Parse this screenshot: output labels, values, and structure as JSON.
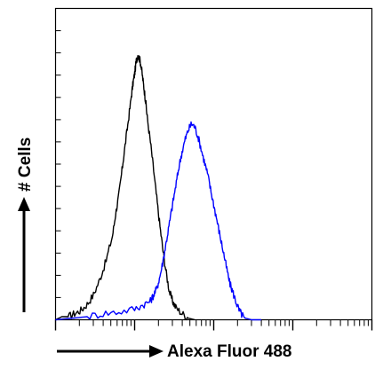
{
  "chart_data": {
    "type": "line",
    "title": "",
    "xlabel": "Alexa Fluor 488",
    "ylabel": "# Cells",
    "x_scale": "log",
    "grid": false,
    "legend": "none",
    "series": [
      {
        "color": "#000000",
        "points": [
          [
            0.0,
            0.0
          ],
          [
            0.02,
            0.01
          ],
          [
            0.04,
            0.01
          ],
          [
            0.06,
            0.02
          ],
          [
            0.08,
            0.03
          ],
          [
            0.1,
            0.05
          ],
          [
            0.12,
            0.08
          ],
          [
            0.14,
            0.13
          ],
          [
            0.16,
            0.19
          ],
          [
            0.18,
            0.27
          ],
          [
            0.19,
            0.34
          ],
          [
            0.2,
            0.4
          ],
          [
            0.21,
            0.48
          ],
          [
            0.22,
            0.56
          ],
          [
            0.23,
            0.64
          ],
          [
            0.24,
            0.72
          ],
          [
            0.245,
            0.76
          ],
          [
            0.25,
            0.79
          ],
          [
            0.255,
            0.83
          ],
          [
            0.26,
            0.85
          ],
          [
            0.265,
            0.84
          ],
          [
            0.27,
            0.82
          ],
          [
            0.275,
            0.78
          ],
          [
            0.28,
            0.74
          ],
          [
            0.285,
            0.7
          ],
          [
            0.29,
            0.65
          ],
          [
            0.3,
            0.57
          ],
          [
            0.31,
            0.48
          ],
          [
            0.32,
            0.39
          ],
          [
            0.33,
            0.3
          ],
          [
            0.34,
            0.22
          ],
          [
            0.35,
            0.15
          ],
          [
            0.36,
            0.09
          ],
          [
            0.37,
            0.06
          ],
          [
            0.38,
            0.04
          ],
          [
            0.4,
            0.02
          ],
          [
            0.42,
            0.005
          ],
          [
            0.44,
            0.0
          ]
        ]
      },
      {
        "color": "#0000ff",
        "points": [
          [
            0.0,
            0.0
          ],
          [
            0.05,
            0.005
          ],
          [
            0.1,
            0.01
          ],
          [
            0.15,
            0.02
          ],
          [
            0.2,
            0.025
          ],
          [
            0.25,
            0.035
          ],
          [
            0.28,
            0.05
          ],
          [
            0.3,
            0.06
          ],
          [
            0.31,
            0.08
          ],
          [
            0.32,
            0.1
          ],
          [
            0.33,
            0.14
          ],
          [
            0.34,
            0.19
          ],
          [
            0.35,
            0.25
          ],
          [
            0.36,
            0.31
          ],
          [
            0.37,
            0.37
          ],
          [
            0.38,
            0.43
          ],
          [
            0.39,
            0.49
          ],
          [
            0.4,
            0.54
          ],
          [
            0.41,
            0.58
          ],
          [
            0.42,
            0.61
          ],
          [
            0.43,
            0.63
          ],
          [
            0.44,
            0.62
          ],
          [
            0.45,
            0.59
          ],
          [
            0.46,
            0.55
          ],
          [
            0.47,
            0.51
          ],
          [
            0.48,
            0.47
          ],
          [
            0.49,
            0.42
          ],
          [
            0.5,
            0.37
          ],
          [
            0.51,
            0.32
          ],
          [
            0.52,
            0.27
          ],
          [
            0.53,
            0.22
          ],
          [
            0.54,
            0.17
          ],
          [
            0.55,
            0.12
          ],
          [
            0.56,
            0.09
          ],
          [
            0.57,
            0.06
          ],
          [
            0.58,
            0.03
          ],
          [
            0.59,
            0.015
          ],
          [
            0.6,
            0.005
          ],
          [
            0.62,
            0.0
          ],
          [
            0.65,
            0.0
          ]
        ]
      }
    ]
  }
}
